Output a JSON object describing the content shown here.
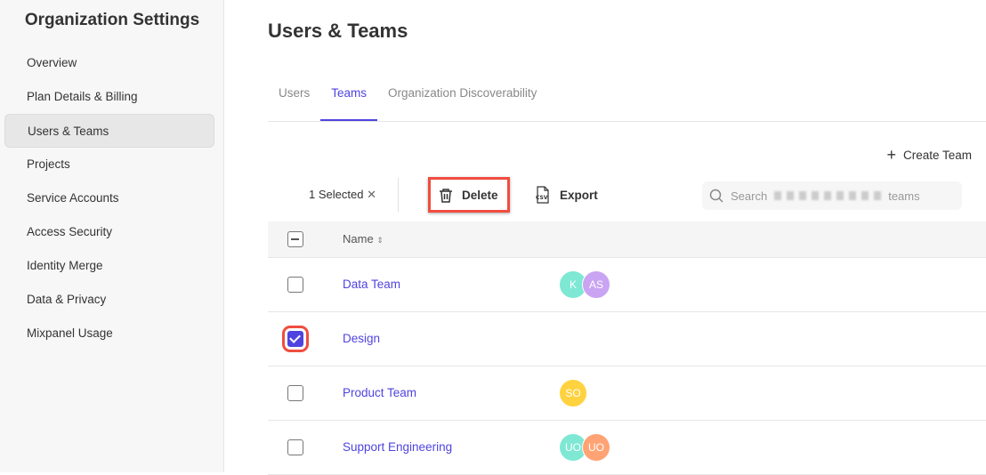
{
  "sidebar": {
    "title": "Organization Settings",
    "items": [
      {
        "label": "Overview"
      },
      {
        "label": "Plan Details & Billing"
      },
      {
        "label": "Users & Teams",
        "active": true
      },
      {
        "label": "Projects"
      },
      {
        "label": "Service Accounts"
      },
      {
        "label": "Access Security"
      },
      {
        "label": "Identity Merge"
      },
      {
        "label": "Data & Privacy"
      },
      {
        "label": "Mixpanel Usage"
      }
    ]
  },
  "header": {
    "title": "Users & Teams"
  },
  "tabs": [
    {
      "label": "Users"
    },
    {
      "label": "Teams",
      "active": true
    },
    {
      "label": "Organization Discoverability"
    }
  ],
  "actions": {
    "create_team": "Create Team",
    "selected": "1 Selected",
    "delete": "Delete",
    "export": "Export",
    "search_prefix": "Search",
    "search_suffix": "teams"
  },
  "table": {
    "header": "Name",
    "accent": "#4f44e0",
    "rows": [
      {
        "name": "Data Team",
        "checked": false,
        "members": [
          {
            "initials": "K",
            "color": "#7ee8d4"
          },
          {
            "initials": "AS",
            "color": "#c9a4f3"
          }
        ]
      },
      {
        "name": "Design",
        "checked": true,
        "members": []
      },
      {
        "name": "Product Team",
        "checked": false,
        "members": [
          {
            "initials": "SO",
            "color": "#ffd23f"
          }
        ]
      },
      {
        "name": "Support Engineering",
        "checked": false,
        "members": [
          {
            "initials": "UO",
            "color": "#7ee8d4"
          },
          {
            "initials": "UO",
            "color": "#ffa374"
          }
        ]
      }
    ]
  }
}
